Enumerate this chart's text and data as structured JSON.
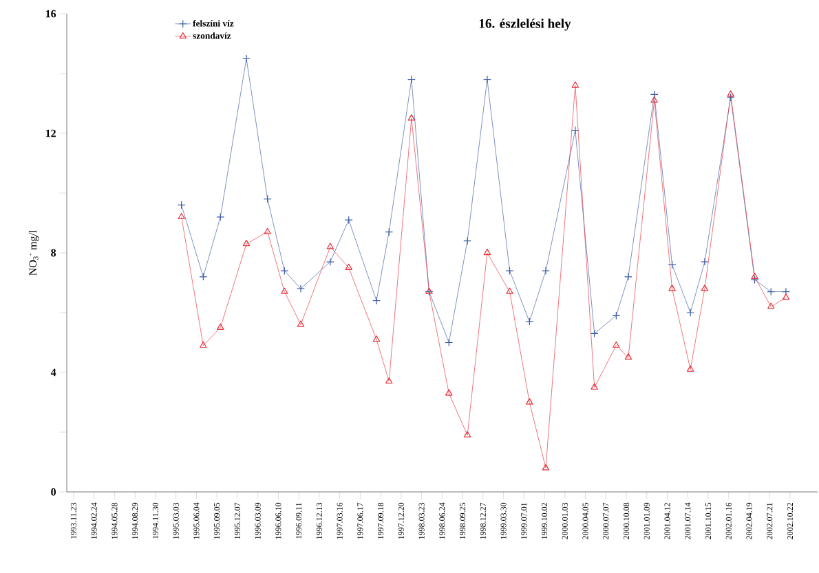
{
  "chart_data": {
    "type": "line",
    "title": "16. észlelési hely",
    "ylabel": "NO$_{3}$$^{-}$  mg/l",
    "x": [
      "1995-03-28",
      "1995-07-05",
      "1995-09-21",
      "1996-01-17",
      "1996-04-22",
      "1996-07-08",
      "1996-09-20",
      "1997-02-01",
      "1997-04-26",
      "1997-08-30",
      "1997-10-26",
      "1998-02-05",
      "1998-04-26",
      "1998-07-25",
      "1998-10-17",
      "1999-01-15",
      "1999-04-27",
      "1999-07-26",
      "1999-10-08",
      "2000-02-19",
      "2000-05-16",
      "2000-08-23",
      "2000-10-17",
      "2001-02-12",
      "2001-05-04",
      "2001-07-26",
      "2001-09-29",
      "2002-01-25",
      "2002-05-14",
      "2002-07-27",
      "2002-10-03"
    ],
    "series": [
      {
        "name": "felszíni víz",
        "color": "#3b5ba5",
        "marker": "cross",
        "line_style": "solid",
        "values": [
          9.6,
          7.2,
          9.2,
          14.5,
          9.8,
          7.4,
          6.8,
          7.7,
          9.1,
          6.4,
          8.7,
          13.8,
          6.7,
          5.0,
          8.4,
          13.8,
          7.4,
          5.7,
          7.4,
          12.1,
          5.3,
          5.9,
          7.2,
          13.3,
          7.6,
          6.0,
          7.7,
          13.2,
          7.1,
          6.7,
          6.7
        ]
      },
      {
        "name": "szondavíz",
        "color": "#e8303a",
        "marker": "triangle",
        "line_style": "solid",
        "values": [
          9.2,
          4.9,
          5.5,
          8.3,
          8.7,
          6.7,
          5.6,
          8.2,
          7.5,
          5.1,
          3.7,
          12.5,
          6.7,
          3.3,
          1.9,
          8.0,
          6.7,
          3.0,
          0.8,
          13.6,
          3.5,
          4.9,
          4.5,
          13.1,
          6.8,
          4.1,
          6.8,
          13.3,
          7.2,
          6.2,
          6.5
        ]
      }
    ],
    "xlim": [
      "1993-10-23",
      "2003-02-24"
    ],
    "xticks": [
      {
        "value": "1993-11-23",
        "label": "1993.11.23"
      },
      {
        "value": "1994-02-24",
        "label": "1994.02.24"
      },
      {
        "value": "1994-05-28",
        "label": "1994.05.28"
      },
      {
        "value": "1994-08-29",
        "label": "1994.08.29"
      },
      {
        "value": "1994-11-30",
        "label": "1994.11.30"
      },
      {
        "value": "1995-03-03",
        "label": "1995.03.03"
      },
      {
        "value": "1995-06-04",
        "label": "1995.06.04"
      },
      {
        "value": "1995-09-05",
        "label": "1995.09.05"
      },
      {
        "value": "1995-12-07",
        "label": "1995.12.07"
      },
      {
        "value": "1996-03-09",
        "label": "1996.03.09"
      },
      {
        "value": "1996-06-10",
        "label": "1996.06.10"
      },
      {
        "value": "1996-09-11",
        "label": "1996.09.11"
      },
      {
        "value": "1996-12-13",
        "label": "1996.12.13"
      },
      {
        "value": "1997-03-16",
        "label": "1997.03.16"
      },
      {
        "value": "1997-06-17",
        "label": "1997.06.17"
      },
      {
        "value": "1997-09-18",
        "label": "1997.09.18"
      },
      {
        "value": "1997-12-20",
        "label": "1997.12.20"
      },
      {
        "value": "1998-03-23",
        "label": "1998.03.23"
      },
      {
        "value": "1998-06-24",
        "label": "1998.06.24"
      },
      {
        "value": "1998-09-25",
        "label": "1998.09.25"
      },
      {
        "value": "1998-12-27",
        "label": "1998.12.27"
      },
      {
        "value": "1999-03-30",
        "label": "1999.03.30"
      },
      {
        "value": "1999-07-01",
        "label": "1999.07.01"
      },
      {
        "value": "1999-10-02",
        "label": "1999.10.02"
      },
      {
        "value": "2000-01-03",
        "label": "2000.01.03"
      },
      {
        "value": "2000-04-05",
        "label": "2000.04.05"
      },
      {
        "value": "2000-07-07",
        "label": "2000.07.07"
      },
      {
        "value": "2000-10-08",
        "label": "2000.10.08"
      },
      {
        "value": "2001-01-09",
        "label": "2001.01.09"
      },
      {
        "value": "2001-04-12",
        "label": "2001.04.12"
      },
      {
        "value": "2001-07-14",
        "label": "2001.07.14"
      },
      {
        "value": "2001-10-15",
        "label": "2001.10.15"
      },
      {
        "value": "2002-01-16",
        "label": "2002.01.16"
      },
      {
        "value": "2002-04-19",
        "label": "2002.04.19"
      },
      {
        "value": "2002-07-21",
        "label": "2002.07.21"
      },
      {
        "value": "2002-10-22",
        "label": "2002.10.22"
      }
    ],
    "ylim": [
      0,
      16
    ],
    "yticks": [
      0,
      {
        "value": 2,
        "label": null
      },
      4,
      {
        "value": 6,
        "label": null
      },
      8,
      {
        "value": 10,
        "label": null
      },
      12,
      {
        "value": 14,
        "label": null
      },
      16
    ],
    "grid": false,
    "legend": "top left"
  }
}
